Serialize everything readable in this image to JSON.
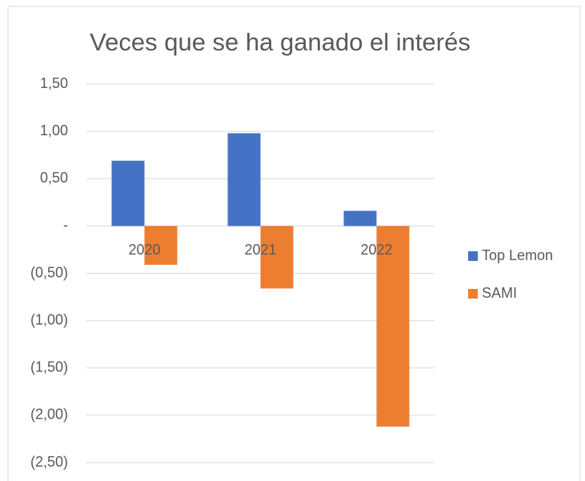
{
  "chart_data": {
    "type": "bar",
    "title": "Veces que se ha ganado el interés",
    "categories": [
      "2020",
      "2021",
      "2022"
    ],
    "series": [
      {
        "name": "Top Lemon",
        "color": "#4472c4",
        "values": [
          0.69,
          0.98,
          0.16
        ]
      },
      {
        "name": "SAMI",
        "color": "#ed7d31",
        "values": [
          -0.41,
          -0.66,
          -2.12
        ]
      }
    ],
    "ylim": [
      -2.5,
      1.5
    ],
    "yticks": [
      {
        "value": -2.5,
        "label": "(2,50)"
      },
      {
        "value": -2,
        "label": "(2,00)"
      },
      {
        "value": -1.5,
        "label": "(1,50)"
      },
      {
        "value": -1,
        "label": "(1,00)"
      },
      {
        "value": -0.5,
        "label": "(0,50)"
      },
      {
        "value": 0,
        "label": "-"
      },
      {
        "value": 0.5,
        "label": "0,50"
      },
      {
        "value": 1,
        "label": "1,00"
      },
      {
        "value": 1.5,
        "label": "1,50"
      }
    ],
    "grid": true,
    "legend": "right"
  }
}
